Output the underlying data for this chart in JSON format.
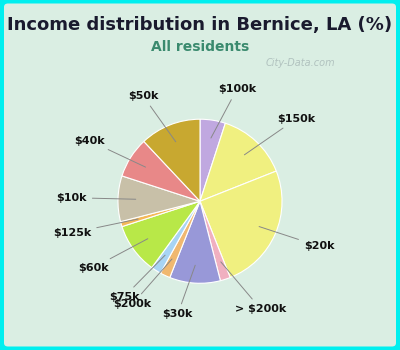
{
  "title": "Income distribution in Bernice, LA (%)",
  "subtitle": "All residents",
  "title_color": "#1a1a2e",
  "subtitle_color": "#3a8a6e",
  "background_color": "#00EFEF",
  "chart_bg_gradient_top": "#e8f5ee",
  "chart_bg_gradient_bottom": "#c8e8d8",
  "watermark": "City-Data.com",
  "slices": [
    {
      "label": "$100k",
      "value": 5,
      "color": "#c0a8e0"
    },
    {
      "label": "$150k",
      "value": 14,
      "color": "#f0f080"
    },
    {
      "label": "$20k",
      "value": 25,
      "color": "#f0f080"
    },
    {
      "label": "> $200k",
      "value": 2,
      "color": "#f0b0c0"
    },
    {
      "label": "$30k",
      "value": 10,
      "color": "#9898d8"
    },
    {
      "label": "$200k",
      "value": 2,
      "color": "#f0b870"
    },
    {
      "label": "$75k",
      "value": 2,
      "color": "#a8d4f4"
    },
    {
      "label": "$60k",
      "value": 10,
      "color": "#b8e848"
    },
    {
      "label": "$125k",
      "value": 1,
      "color": "#f4b858"
    },
    {
      "label": "$10k",
      "value": 9,
      "color": "#c8c0a8"
    },
    {
      "label": "$40k",
      "value": 8,
      "color": "#e88888"
    },
    {
      "label": "$50k",
      "value": 12,
      "color": "#c8a830"
    }
  ],
  "label_fontsize": 8,
  "title_fontsize": 13,
  "subtitle_fontsize": 10,
  "figsize": [
    4.0,
    3.5
  ],
  "dpi": 100
}
